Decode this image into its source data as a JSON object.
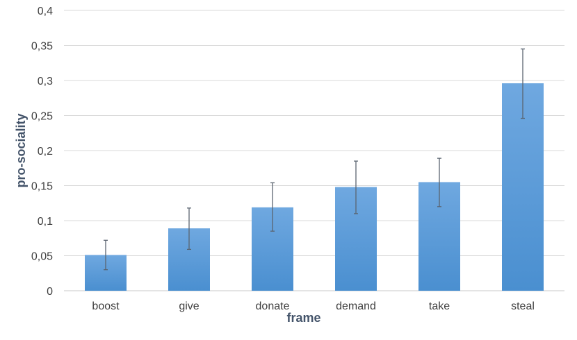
{
  "chart_data": {
    "type": "bar",
    "xlabel": "frame",
    "ylabel": "pro-sociality",
    "categories": [
      "boost",
      "give",
      "donate",
      "demand",
      "take",
      "steal"
    ],
    "values": [
      0.051,
      0.089,
      0.119,
      0.148,
      0.155,
      0.296
    ],
    "error_low": [
      0.03,
      0.059,
      0.085,
      0.11,
      0.12,
      0.246
    ],
    "error_high": [
      0.072,
      0.118,
      0.154,
      0.185,
      0.189,
      0.345
    ],
    "ylim": [
      0,
      0.4
    ],
    "yticks": [
      0,
      0.05,
      0.1,
      0.15,
      0.2,
      0.25,
      0.3,
      0.35,
      0.4
    ],
    "ytick_labels": [
      "0",
      "0,05",
      "0,1",
      "0,15",
      "0,2",
      "0,25",
      "0,3",
      "0,35",
      "0,4"
    ],
    "grid": true,
    "bar_color_top": "#6fa8e0",
    "bar_color_bottom": "#4a8fd0",
    "error_bar_color": "#5a6470",
    "grid_color": "#d9d9d9",
    "axis_title_color": "#44546a"
  }
}
